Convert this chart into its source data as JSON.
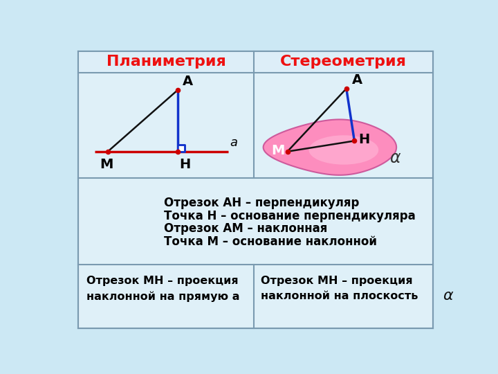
{
  "bg_color": "#cce8f4",
  "table_bg": "#dff0f8",
  "header_bg": "#ddeef8",
  "border_color": "#7a9ab0",
  "title_left": "Планиметрия",
  "title_right": "Стереометрия",
  "title_color": "#ee1111",
  "title_fontsize": 16,
  "body_fontsize": 12,
  "small_fontsize": 11.5,
  "label_fontsize": 13,
  "point_color": "#cc0000",
  "line_red": "#cc0000",
  "line_blue": "#1133cc",
  "line_black": "#111111",
  "blob_color_inner": "#ffaacc",
  "blob_color_outer": "#ff77bb",
  "text_lines_center": [
    "Отрезок АН – перпендикуляр",
    "Точка Н – основание перпендикуляра",
    "Отрезок АМ – наклонная",
    "Точка М – основание наклонной"
  ],
  "text_bottom_left": "Отрезок МН – проекция\nнаклонной на прямую а",
  "text_bottom_right": "Отрезок МН – проекция\nнаклонной на плоскость "
}
